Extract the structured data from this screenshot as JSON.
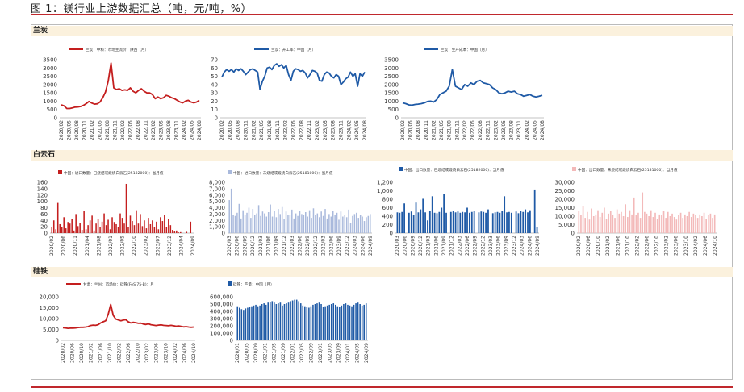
{
  "figure_title": "图 1：镁行业上游数据汇总（吨，元/吨，%）",
  "sections": [
    "兰炭",
    "白云石",
    "硅铁"
  ],
  "colors": {
    "red": "#c41e1e",
    "blue": "#1f5aa6",
    "pink": "#f3b9b9",
    "lightblue": "#a9b9dc",
    "band": "#fbf1dd",
    "accent": "#c0282d"
  },
  "chart_data": [
    {
      "id": "c1",
      "type": "line",
      "section": "兰炭",
      "color": "#c41e1e",
      "legend": "兰炭：中料：市场主流价：陕西（月）",
      "yticks": [
        "3500",
        "3000",
        "2500",
        "2000",
        "1500",
        "1000",
        "500",
        "0"
      ],
      "ylim": [
        0,
        3500
      ],
      "xticks": [
        "2020/02",
        "2020/05",
        "2020/08",
        "2020/11",
        "2021/02",
        "2021/05",
        "2021/08",
        "2021/11",
        "2022/02",
        "2022/05",
        "2022/08",
        "2022/11",
        "2023/02",
        "2023/05",
        "2023/08",
        "2023/11",
        "2024/02",
        "2024/05",
        "2024/08"
      ],
      "values": [
        780,
        720,
        560,
        560,
        600,
        640,
        650,
        680,
        750,
        850,
        980,
        890,
        820,
        840,
        950,
        1200,
        1550,
        2200,
        3300,
        1800,
        1700,
        1750,
        1650,
        1680,
        1650,
        1800,
        1600,
        1500,
        1650,
        1750,
        1600,
        1500,
        1500,
        1400,
        1150,
        1250,
        1150,
        1200,
        1350,
        1300,
        1200,
        1150,
        1050,
        950,
        900,
        1000,
        1050,
        950,
        900,
        950,
        1050
      ]
    },
    {
      "id": "c2",
      "type": "line",
      "section": "兰炭",
      "color": "#1f5aa6",
      "legend": "兰炭：开工率：中国（月）",
      "yticks": [
        "70",
        "60",
        "50",
        "40",
        "30",
        "20",
        "10",
        "0"
      ],
      "ylim": [
        0,
        70
      ],
      "xticks": [
        "2020/02",
        "2020/05",
        "2020/08",
        "2020/11",
        "2021/02",
        "2021/05",
        "2021/08",
        "2021/11",
        "2022/02",
        "2022/05",
        "2022/08",
        "2022/11",
        "2023/02",
        "2023/05",
        "2023/08",
        "2023/11",
        "2024/02",
        "2024/05",
        "2024/08"
      ],
      "values": [
        49,
        55,
        58,
        56,
        58,
        55,
        59,
        57,
        59,
        56,
        52,
        55,
        58,
        59,
        57,
        55,
        34,
        44,
        50,
        60,
        61,
        58,
        63,
        65,
        62,
        64,
        60,
        63,
        52,
        45,
        56,
        59,
        58,
        56,
        57,
        54,
        48,
        52,
        57,
        56,
        54,
        45,
        44,
        52,
        55,
        54,
        50,
        48,
        52,
        50,
        40,
        43,
        47,
        49,
        55,
        50,
        53,
        38,
        53,
        50,
        55
      ]
    },
    {
      "id": "c3",
      "type": "line",
      "section": "兰炭",
      "color": "#1f5aa6",
      "legend": "兰炭：生产成本：中国（月）",
      "yticks": [
        "3500",
        "3000",
        "2500",
        "2000",
        "1500",
        "1000",
        "500",
        "0"
      ],
      "ylim": [
        0,
        3500
      ],
      "xticks": [
        "2020/02",
        "2020/05",
        "2020/08",
        "2020/11",
        "2021/02",
        "2021/05",
        "2021/08",
        "2021/11",
        "2022/02",
        "2022/05",
        "2022/08",
        "2022/11",
        "2023/02",
        "2023/05",
        "2023/08",
        "2023/11",
        "2024/02",
        "2024/05",
        "2024/08"
      ],
      "values": [
        900,
        850,
        780,
        760,
        800,
        820,
        850,
        900,
        980,
        1000,
        950,
        1100,
        1400,
        1500,
        1600,
        1900,
        2900,
        1900,
        1800,
        1700,
        2000,
        1900,
        2100,
        2000,
        2200,
        2250,
        2100,
        2050,
        2000,
        1800,
        1700,
        1500,
        1450,
        1500,
        1600,
        1550,
        1600,
        1450,
        1400,
        1300,
        1350,
        1400,
        1300,
        1250,
        1300,
        1350
      ]
    },
    {
      "id": "c4",
      "type": "bar",
      "section": "白云石",
      "color": "#c41e1e",
      "legend": "中国：进口数量：已烧结或煅烧白云石(25182000)：当月值",
      "yticks": [
        "160",
        "140",
        "120",
        "100",
        "80",
        "60",
        "40",
        "20",
        "0"
      ],
      "ylim": [
        0,
        160
      ],
      "xticks": [
        "2020/02",
        "2020/06",
        "2020/11",
        "2021/04",
        "2021/08",
        "2022/01",
        "2022/05",
        "2022/10",
        "2023/02",
        "2023/07",
        "2023/12",
        "2024/04",
        "2024/09"
      ],
      "values": [
        18,
        40,
        12,
        95,
        28,
        20,
        50,
        15,
        35,
        30,
        45,
        8,
        60,
        22,
        32,
        10,
        70,
        12,
        25,
        40,
        55,
        8,
        30,
        45,
        20,
        36,
        62,
        25,
        42,
        12,
        50,
        35,
        28,
        18,
        62,
        48,
        30,
        155,
        20,
        55,
        38,
        25,
        72,
        30,
        60,
        22,
        40,
        15,
        48,
        28,
        40,
        18,
        36,
        12,
        50,
        38,
        58,
        20,
        45,
        25,
        10,
        5,
        8,
        2,
        3,
        0,
        0,
        4,
        0,
        36,
        0
      ]
    },
    {
      "id": "c5",
      "type": "bar",
      "section": "白云石",
      "color": "#a9b9dc",
      "legend": "中国：进口数量：未烧结或煅烧白云石(25181000)：当月值",
      "yticks": [
        "8,000",
        "7,000",
        "6,000",
        "5,000",
        "4,000",
        "3,000",
        "2,000",
        "1,000",
        "0"
      ],
      "ylim": [
        0,
        8000
      ],
      "xticks": [
        "2020/03",
        "2020/06",
        "2020/09",
        "2020/12",
        "2021/03",
        "2021/06",
        "2021/09",
        "2021/12",
        "2022/03",
        "2022/06",
        "2022/09",
        "2022/12",
        "2023/03",
        "2023/06",
        "2023/09",
        "2023/12",
        "2024/03",
        "2024/06",
        "2024/09"
      ],
      "values": [
        5200,
        7000,
        2800,
        2700,
        3200,
        4600,
        2300,
        3600,
        2900,
        3200,
        4000,
        2400,
        3800,
        2900,
        3100,
        4400,
        2700,
        3400,
        3100,
        2600,
        3300,
        4500,
        2600,
        3500,
        2500,
        3800,
        3000,
        4100,
        2200,
        3400,
        2800,
        2900,
        3700,
        2300,
        3100,
        2700,
        3500,
        3000,
        2800,
        3300,
        2600,
        3600,
        2400,
        3900,
        2900,
        3100,
        2500,
        3400,
        2700,
        3800,
        2300,
        3000,
        2600,
        3500,
        2800,
        3200,
        2100,
        3400,
        2600,
        2900,
        2500,
        3700,
        1600,
        2700,
        3000,
        3200,
        2400,
        2800,
        2600,
        1900,
        2500,
        2700,
        3000
      ]
    },
    {
      "id": "c6",
      "type": "bar",
      "section": "白云石",
      "color": "#1f5aa6",
      "legend": "中国：出口数量：已烧结或煅烧白云石(25182000)：当月值",
      "yticks": [
        "1,200",
        "1,000",
        "800",
        "600",
        "400",
        "200",
        "0"
      ],
      "ylim": [
        0,
        1200
      ],
      "xticks": [
        "2020/03",
        "2020/06",
        "2020/09",
        "2020/12",
        "2021/03",
        "2021/06",
        "2021/09",
        "2021/12",
        "2022/03",
        "2022/06",
        "2022/09",
        "2022/12",
        "2023/03",
        "2023/06",
        "2023/09",
        "2023/12",
        "2024/03",
        "2024/06",
        "2024/09"
      ],
      "values": [
        490,
        480,
        500,
        700,
        0,
        480,
        510,
        420,
        720,
        490,
        560,
        810,
        490,
        300,
        530,
        870,
        480,
        470,
        500,
        600,
        920,
        480,
        0,
        500,
        520,
        490,
        510,
        480,
        500,
        490,
        600,
        480,
        500,
        520,
        0,
        490,
        510,
        500,
        480,
        560,
        0,
        470,
        490,
        500,
        480,
        520,
        870,
        490,
        500,
        480,
        0,
        510,
        470,
        530,
        500,
        560,
        490,
        540,
        0,
        1030,
        150
      ]
    },
    {
      "id": "c7",
      "type": "bar",
      "section": "白云石",
      "color": "#f3b9b9",
      "legend": "中国：出口数量：未烧结或煅烧白云石(25181000)：当月值",
      "yticks": [
        "30,000",
        "25,000",
        "20,000",
        "15,000",
        "10,000",
        "5,000",
        "0"
      ],
      "ylim": [
        0,
        30000
      ],
      "xticks": [
        "2020/02",
        "2020/06",
        "2020/10",
        "2021/02",
        "2021/06",
        "2021/10",
        "2022/02",
        "2022/06",
        "2022/10",
        "2023/02",
        "2023/06",
        "2023/10",
        "2024/02",
        "2024/06",
        "2024/10"
      ],
      "values": [
        13000,
        10500,
        16000,
        9000,
        12500,
        8000,
        14500,
        10000,
        11000,
        13500,
        9500,
        12000,
        15000,
        8500,
        11500,
        13000,
        10500,
        9000,
        14000,
        11500,
        12500,
        10000,
        17000,
        9500,
        13500,
        11000,
        21000,
        10500,
        12000,
        9000,
        24000,
        12500,
        11500,
        10000,
        13500,
        9500,
        12000,
        8500,
        11000,
        10500,
        13000,
        9000,
        12500,
        10000,
        11500,
        9500,
        8000,
        10500,
        12000,
        9000,
        11000,
        10000,
        12500,
        9500,
        11500,
        10500,
        9000,
        11000,
        10000,
        12000,
        8500,
        10500,
        11500,
        9000,
        11000
      ]
    },
    {
      "id": "c8",
      "type": "line",
      "section": "硅铁",
      "color": "#c41e1e",
      "legend": "甘肃：兰州：市场价：硅铁(FeSi75-B)：月",
      "yticks": [
        "20,000",
        "15,000",
        "10,000",
        "5,000",
        "0"
      ],
      "ylim": [
        0,
        20000
      ],
      "xticks": [
        "2020/02",
        "2020/06",
        "2020/10",
        "2021/02",
        "2021/06",
        "2021/10",
        "2022/02",
        "2022/06",
        "2022/10",
        "2023/02",
        "2023/06",
        "2023/10",
        "2024/02",
        "2024/06",
        "2024/10"
      ],
      "values": [
        5800,
        5700,
        5500,
        5600,
        5600,
        5700,
        5900,
        6000,
        6000,
        6100,
        6300,
        6800,
        7000,
        6900,
        7200,
        8000,
        8500,
        9000,
        12000,
        16500,
        11500,
        9800,
        9400,
        9000,
        9300,
        9500,
        8500,
        8000,
        8300,
        8100,
        7800,
        7900,
        7500,
        7300,
        7600,
        7200,
        7000,
        6800,
        7000,
        7100,
        6900,
        6800,
        6700,
        6900,
        6700,
        6500,
        6600,
        6400,
        6200,
        6300,
        6100,
        6000,
        6100
      ]
    },
    {
      "id": "c9",
      "type": "bar",
      "section": "硅铁",
      "color": "#1f5aa6",
      "legend": "硅铁：产量：中国（月）",
      "yticks": [
        "600,000",
        "500,000",
        "400,000",
        "300,000",
        "200,000",
        "100,000",
        "0"
      ],
      "ylim": [
        0,
        600000
      ],
      "xticks": [
        "2020/01",
        "2020/05",
        "2020/09",
        "2021/01",
        "2021/05",
        "2021/09",
        "2022/01",
        "2022/05",
        "2022/09",
        "2023/01",
        "2023/05",
        "2023/09",
        "2024/01",
        "2024/05",
        "2024/09"
      ],
      "values": [
        470000,
        450000,
        430000,
        420000,
        440000,
        450000,
        460000,
        470000,
        480000,
        490000,
        470000,
        480000,
        500000,
        510000,
        490000,
        520000,
        530000,
        540000,
        520000,
        500000,
        510000,
        520000,
        480000,
        500000,
        510000,
        520000,
        540000,
        550000,
        560000,
        560000,
        540000,
        510000,
        480000,
        470000,
        460000,
        450000,
        470000,
        490000,
        500000,
        510000,
        520000,
        500000,
        460000,
        470000,
        480000,
        490000,
        500000,
        510000,
        490000,
        470000,
        460000,
        480000,
        500000,
        510000,
        490000,
        480000,
        470000,
        490000,
        510000,
        520000,
        500000,
        480000,
        490000,
        510000
      ]
    }
  ]
}
